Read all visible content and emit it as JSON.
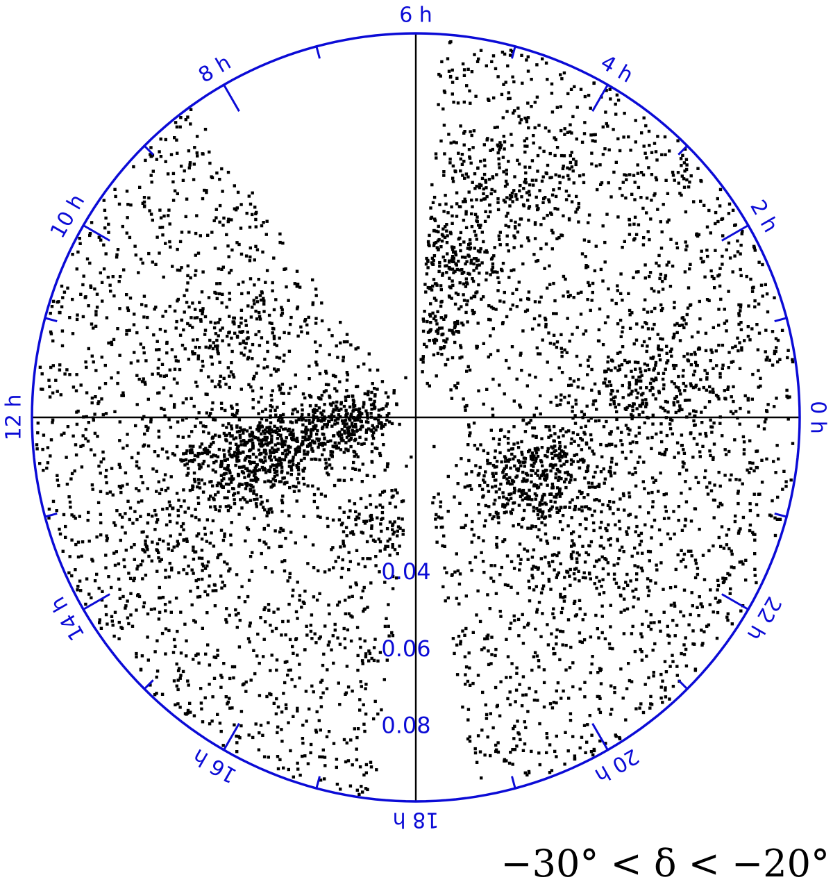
{
  "chart_data": {
    "type": "scatter",
    "projection": "polar (right ascension as angle, redshift as radius)",
    "angular_axis": {
      "quantity": "right ascension",
      "unit": "h",
      "direction": "counterclockwise",
      "zero_at": "right",
      "major_tick_every_h": 2,
      "minor_tick_every_h": 1,
      "labels": [
        {
          "hour": 0,
          "text": "0 h"
        },
        {
          "hour": 2,
          "text": "2 h"
        },
        {
          "hour": 4,
          "text": "4 h"
        },
        {
          "hour": 6,
          "text": "6 h"
        },
        {
          "hour": 8,
          "text": "8 h"
        },
        {
          "hour": 10,
          "text": "10 h"
        },
        {
          "hour": 12,
          "text": "12 h"
        },
        {
          "hour": 14,
          "text": "14 h"
        },
        {
          "hour": 16,
          "text": "16 h"
        },
        {
          "hour": 18,
          "text": "18 h"
        },
        {
          "hour": 20,
          "text": "20 h"
        },
        {
          "hour": 22,
          "text": "22 h"
        }
      ]
    },
    "radial_axis": {
      "quantity": "redshift",
      "range": [
        0,
        0.1
      ],
      "tick_labels": [
        {
          "value": 0.04,
          "text": "0.04"
        },
        {
          "value": 0.06,
          "text": "0.06"
        },
        {
          "value": 0.08,
          "text": "0.08"
        }
      ]
    },
    "empty_wedges_ra_h": [
      [
        5.75,
        8.4
      ],
      [
        17.6,
        18.6
      ]
    ],
    "dense_clusters": [
      {
        "ra_h": 12.9,
        "z": 0.045,
        "n": 420,
        "spread": 0.006
      },
      {
        "ra_h": 12.5,
        "z": 0.028,
        "n": 240,
        "spread": 0.005
      },
      {
        "ra_h": 11.6,
        "z": 0.014,
        "n": 160,
        "spread": 0.004
      },
      {
        "ra_h": 10.5,
        "z": 0.052,
        "n": 120,
        "spread": 0.007
      },
      {
        "ra_h": 5.4,
        "z": 0.042,
        "n": 240,
        "spread": 0.006
      },
      {
        "ra_h": 5.6,
        "z": 0.022,
        "n": 140,
        "spread": 0.005
      },
      {
        "ra_h": 4.6,
        "z": 0.065,
        "n": 140,
        "spread": 0.007
      },
      {
        "ra_h": 0.5,
        "z": 0.063,
        "n": 200,
        "spread": 0.007
      },
      {
        "ra_h": 22.7,
        "z": 0.037,
        "n": 190,
        "spread": 0.006
      },
      {
        "ra_h": 21.7,
        "z": 0.034,
        "n": 170,
        "spread": 0.006
      },
      {
        "ra_h": 21.2,
        "z": 0.055,
        "n": 110,
        "spread": 0.007
      },
      {
        "ra_h": 13.7,
        "z": 0.07,
        "n": 110,
        "spread": 0.008
      },
      {
        "ra_h": 17.0,
        "z": 0.03,
        "n": 90,
        "spread": 0.005
      }
    ],
    "field_points": 4200,
    "xlabel": "",
    "ylabel": "",
    "title": "",
    "grid": "crosshair axes only"
  },
  "colors": {
    "axis_circle": "#0b0bd6",
    "labels": "#0b0bd6",
    "points": "#000000",
    "crosshair": "#000000"
  },
  "caption": "−30° < δ < −20°"
}
